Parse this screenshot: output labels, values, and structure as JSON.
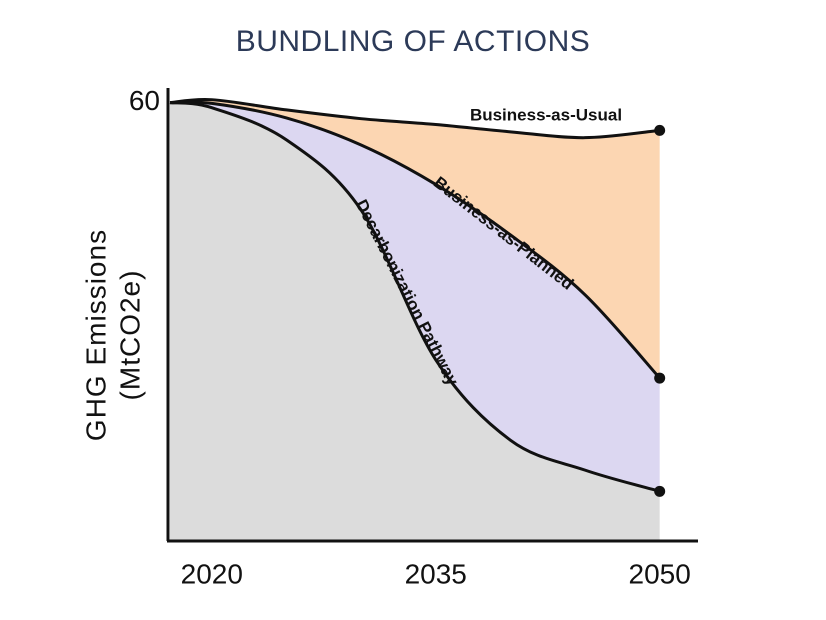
{
  "chart_data": {
    "type": "area",
    "title": "BUNDLING OF ACTIONS",
    "y_label": [
      "GHG Emissions",
      "(MtCO2e)"
    ],
    "x": [
      2017.2,
      2020,
      2025,
      2030,
      2035,
      2040,
      2045,
      2050
    ],
    "xlim": [
      2017.2,
      2052.5
    ],
    "xticks": [
      2020,
      2035,
      2050
    ],
    "ylim": [
      0,
      62
    ],
    "yticks": [
      60
    ],
    "series": [
      {
        "name": "Business-as-Usual",
        "color": "#fcd6b2",
        "values": [
          60,
          60.4,
          59,
          57.8,
          57,
          56,
          55.2,
          56.2
        ]
      },
      {
        "name": "Business-as-Planned",
        "color": "#dcd7f1",
        "values": [
          60,
          59.9,
          57.9,
          54.2,
          48.8,
          41.9,
          33.7,
          22.3
        ]
      },
      {
        "name": "Decarbonization Pathway",
        "color": "#dcdcdc",
        "values": [
          60,
          59.3,
          54.9,
          45.3,
          24.8,
          13.8,
          9.7,
          6.8
        ]
      }
    ]
  }
}
